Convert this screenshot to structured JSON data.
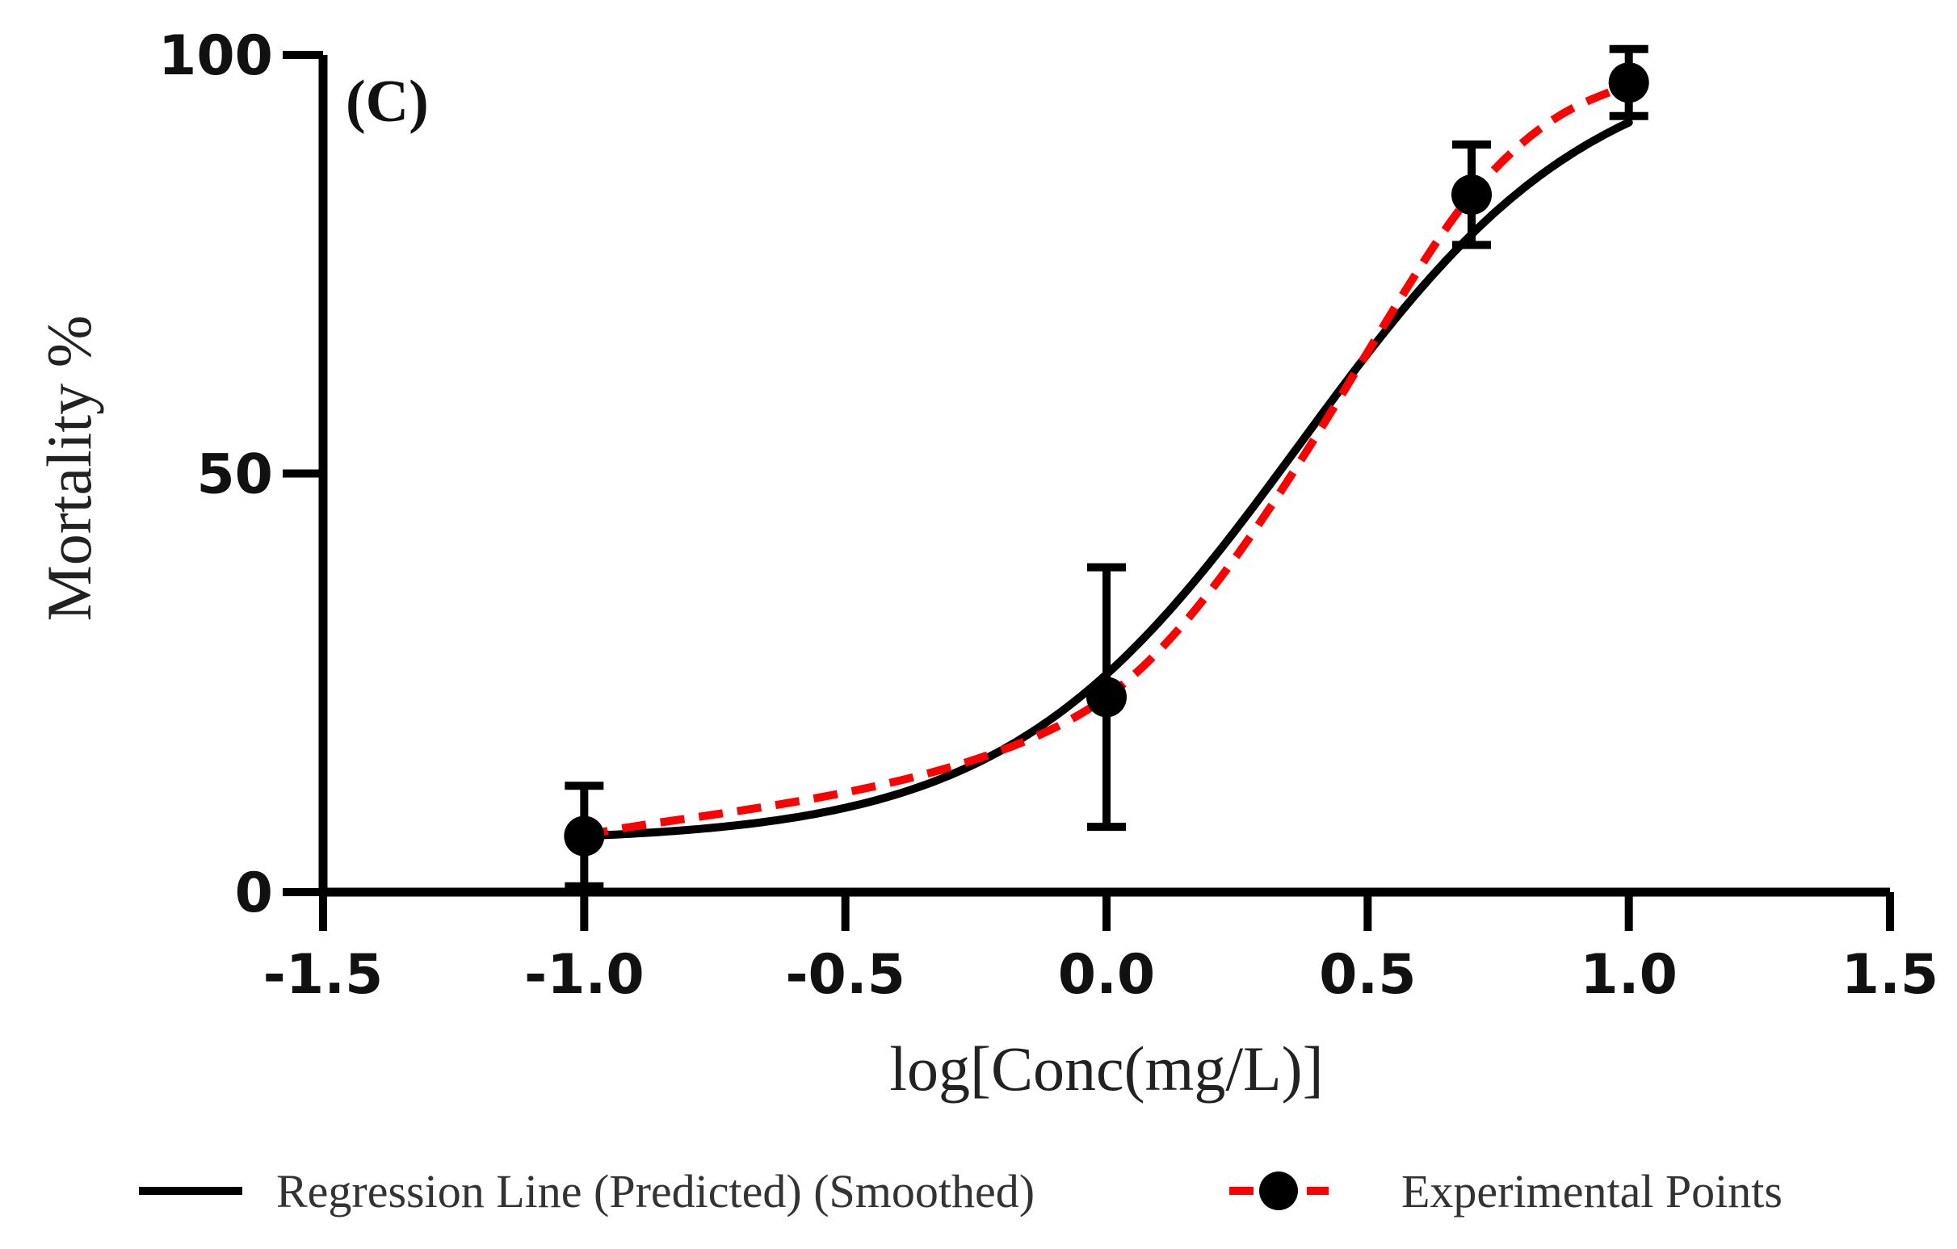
{
  "chart_data": {
    "type": "line",
    "panel_label": "(C)",
    "xlabel": "log[Conc(mg/L)]",
    "ylabel": "Mortality %",
    "xlim": [
      -1.5,
      1.5
    ],
    "ylim": [
      0,
      100
    ],
    "x_ticks": [
      -1.5,
      -1.0,
      -0.5,
      0.0,
      0.5,
      1.0,
      1.5
    ],
    "x_tick_labels": [
      "-1.5",
      "-1.0",
      "-0.5",
      "0.0",
      "0.5",
      "1.0",
      "1.5"
    ],
    "y_ticks": [
      0,
      50,
      100
    ],
    "y_tick_labels": [
      "0",
      "50",
      "100"
    ],
    "series": [
      {
        "name": "Regression Line (Predicted) (Smoothed)",
        "style": "solid",
        "color": "#000000",
        "curve": {
          "bottom": 6,
          "top": 101,
          "log_ec50": 0.37,
          "hill_slope": 1.55
        }
      },
      {
        "name": "Experimental Points",
        "style": "dashed",
        "color": "#ff0000",
        "marker_color": "#000000",
        "x": [
          -1.0,
          0.0,
          0.699,
          1.0
        ],
        "y": [
          6.7,
          23.3,
          83.3,
          96.7
        ],
        "error": [
          6.0,
          15.5,
          6.0,
          4.0
        ]
      }
    ],
    "legend": [
      "Regression Line (Predicted) (Smoothed)",
      "Experimental Points"
    ],
    "legend_position": "bottom"
  }
}
